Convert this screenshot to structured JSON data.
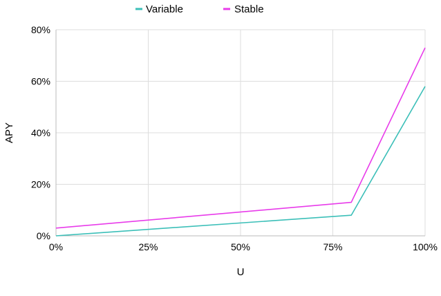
{
  "chart_data": {
    "type": "line",
    "xlabel": "U",
    "ylabel": "APY",
    "x": [
      0,
      80,
      100
    ],
    "series": [
      {
        "name": "Variable",
        "color": "#3bbfb8",
        "values": [
          0,
          8,
          58
        ]
      },
      {
        "name": "Stable",
        "color": "#e83bea",
        "values": [
          3,
          13,
          73
        ]
      }
    ],
    "xlim": [
      0,
      100
    ],
    "ylim": [
      0,
      80
    ],
    "x_ticks": [
      "0%",
      "25%",
      "50%",
      "75%",
      "100%"
    ],
    "y_ticks": [
      "0%",
      "20%",
      "40%",
      "60%",
      "80%"
    ],
    "x_tick_values": [
      0,
      25,
      50,
      75,
      100
    ],
    "y_tick_values": [
      0,
      20,
      40,
      60,
      80
    ],
    "grid": true,
    "legend_position": "top"
  }
}
